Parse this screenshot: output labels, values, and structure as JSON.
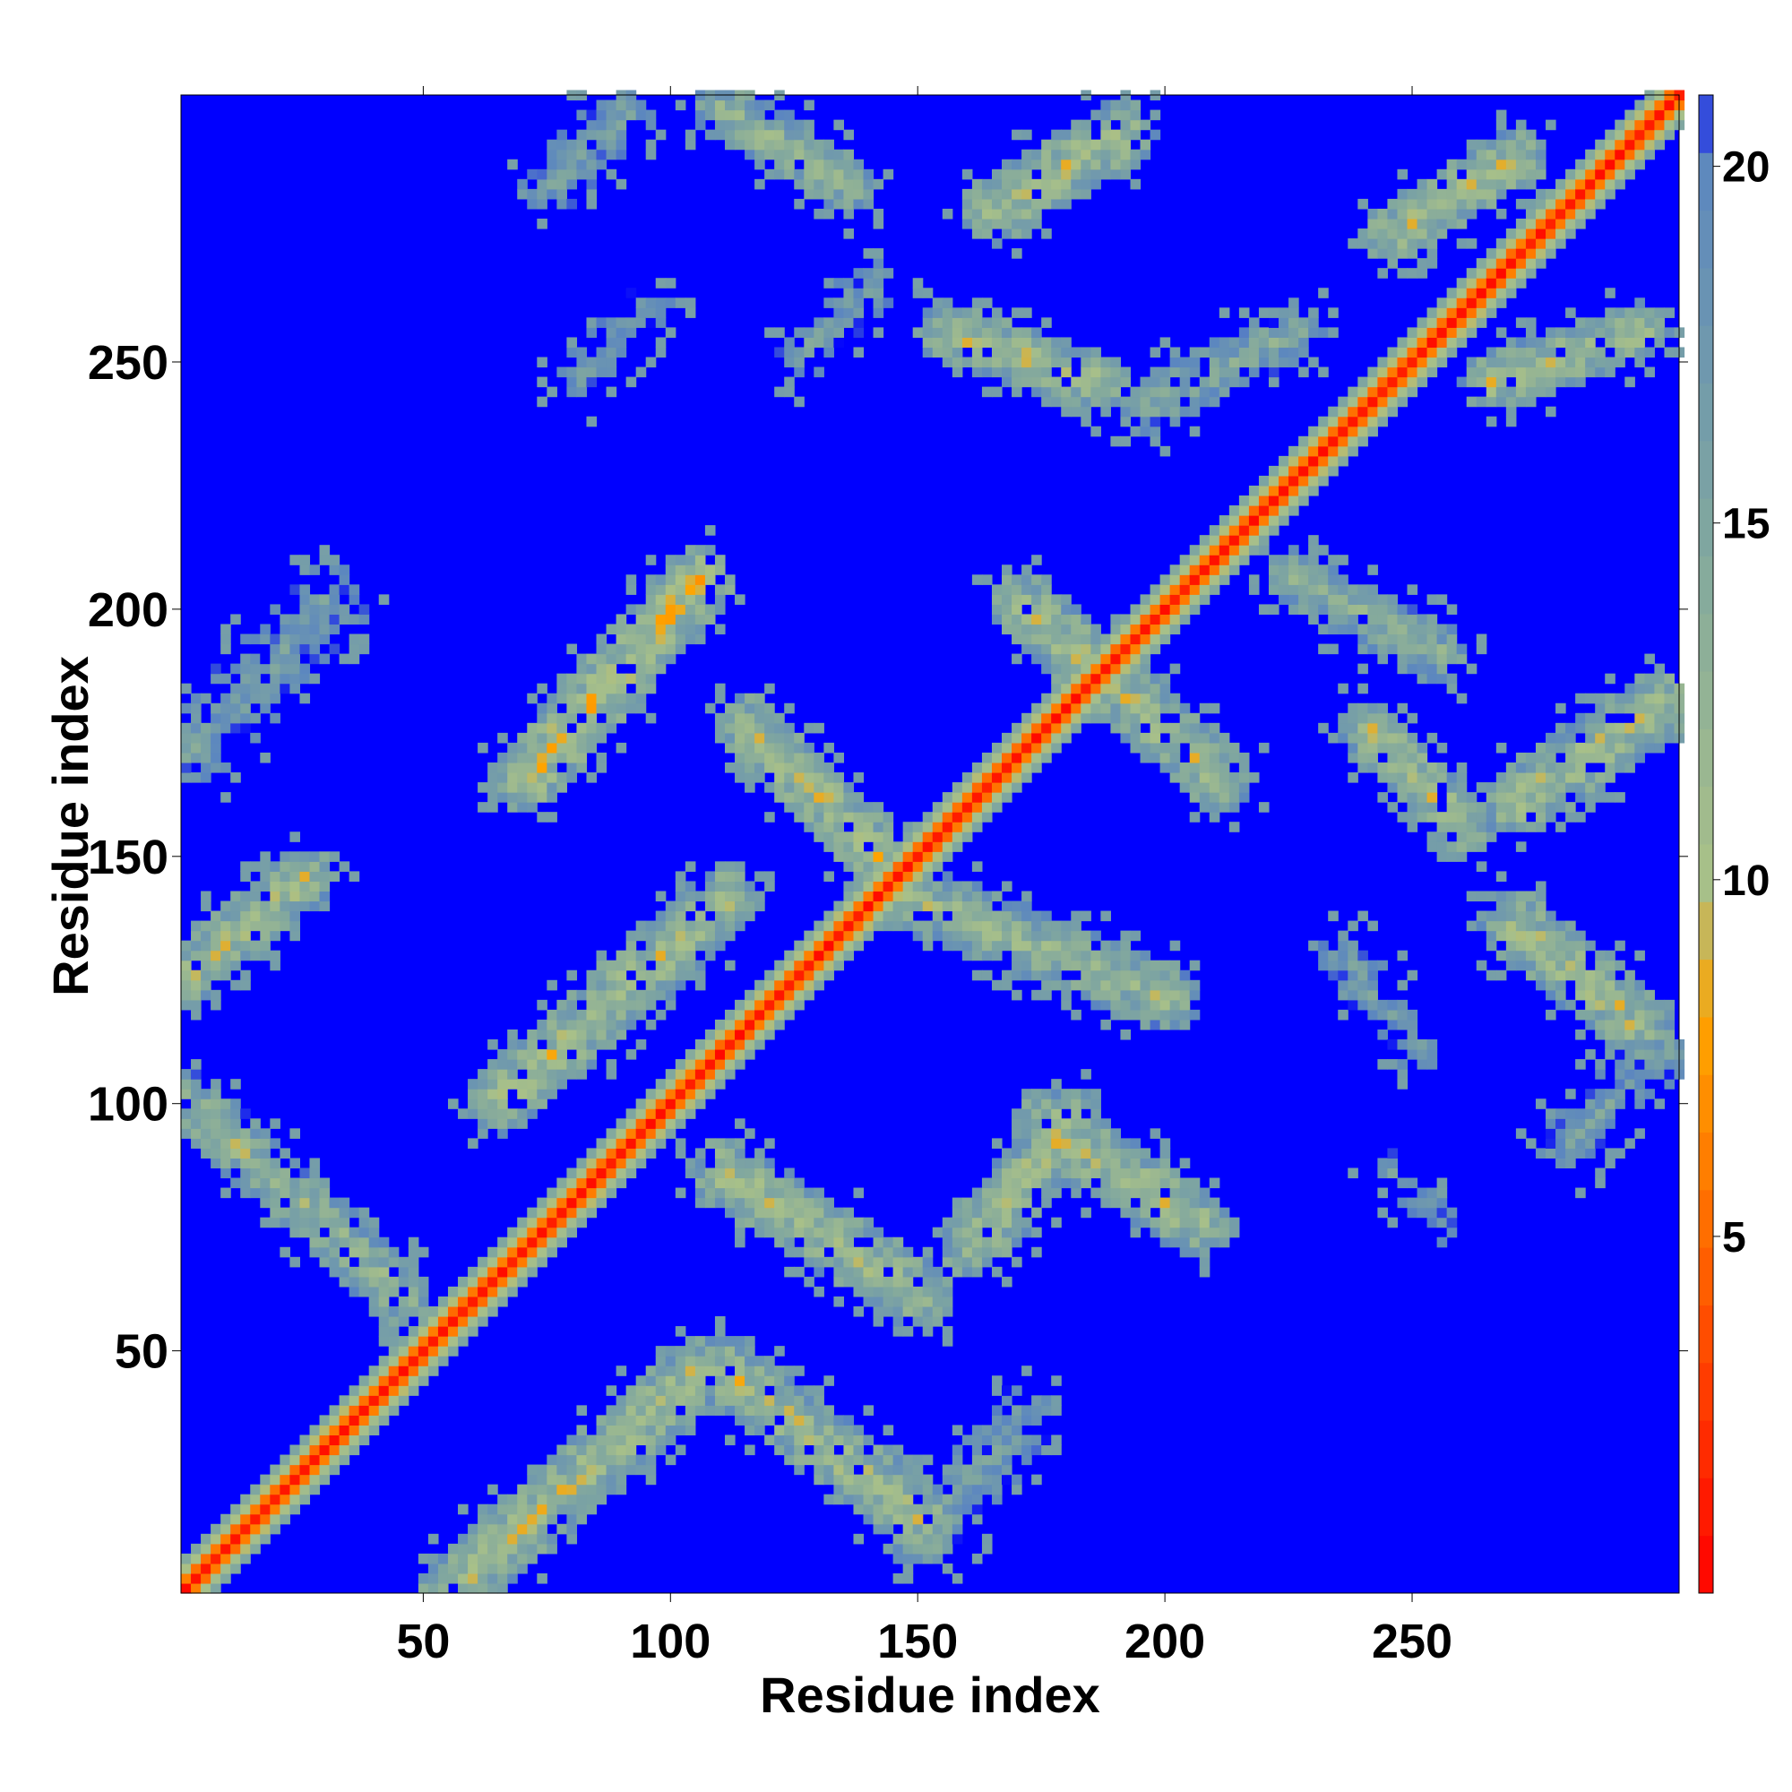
{
  "chart_data": {
    "type": "heatmap",
    "title": "",
    "xlabel": "Residue index",
    "ylabel": "Residue index",
    "xlim": [
      1,
      304
    ],
    "ylim": [
      1,
      304
    ],
    "x_ticks": [
      50,
      100,
      150,
      200,
      250
    ],
    "y_ticks": [
      50,
      100,
      150,
      200,
      250
    ],
    "grid": false,
    "colorbar": {
      "range": [
        0,
        21
      ],
      "ticks": [
        5,
        10,
        15,
        20
      ],
      "stops": [
        {
          "value": 0,
          "color": "#ff0000"
        },
        {
          "value": 4,
          "color": "#ff5500"
        },
        {
          "value": 8,
          "color": "#ffa500"
        },
        {
          "value": 10,
          "color": "#a8c089"
        },
        {
          "value": 15,
          "color": "#7fa6a0"
        },
        {
          "value": 20.3,
          "color": "#5b86c0"
        },
        {
          "value": 21,
          "color": "#0000ff"
        }
      ],
      "background_color": "#0000ff"
    },
    "diagonal": {
      "from": 1,
      "to": 304,
      "core_value": 1,
      "band_halfwidth": 7
    },
    "contact_segments": [
      {
        "i": [
          1,
          45
        ],
        "j": [
          100,
          60
        ],
        "width": 6,
        "value": 12
      },
      {
        "i": [
          1,
          25
        ],
        "j": [
          125,
          145
        ],
        "width": 6,
        "value": 11
      },
      {
        "i": [
          2,
          30
        ],
        "j": [
          170,
          200
        ],
        "width": 8,
        "value": 16
      },
      {
        "i": [
          55,
          105
        ],
        "j": [
          1,
          45
        ],
        "width": 7,
        "value": 11
      },
      {
        "i": [
          65,
          110
        ],
        "j": [
          100,
          140
        ],
        "width": 7,
        "value": 11
      },
      {
        "i": [
          70,
          105
        ],
        "j": [
          165,
          205
        ],
        "width": 7,
        "value": 10
      },
      {
        "i": [
          75,
          90
        ],
        "j": [
          285,
          300
        ],
        "width": 6,
        "value": 16
      },
      {
        "i": [
          80,
          95
        ],
        "j": [
          245,
          260
        ],
        "width": 5,
        "value": 17
      },
      {
        "i": [
          110,
          150
        ],
        "j": [
          45,
          15
        ],
        "width": 7,
        "value": 11
      },
      {
        "i": [
          110,
          150
        ],
        "j": [
          85,
          60
        ],
        "width": 7,
        "value": 11
      },
      {
        "i": [
          115,
          150
        ],
        "j": [
          175,
          140
        ],
        "width": 7,
        "value": 11
      },
      {
        "i": [
          110,
          135
        ],
        "j": [
          300,
          285
        ],
        "width": 6,
        "value": 12
      },
      {
        "i": [
          125,
          140
        ],
        "j": [
          250,
          265
        ],
        "width": 5,
        "value": 16
      },
      {
        "i": [
          150,
          170
        ],
        "j": [
          10,
          35
        ],
        "width": 7,
        "value": 16
      },
      {
        "i": [
          150,
          200
        ],
        "j": [
          140,
          120
        ],
        "width": 7,
        "value": 12
      },
      {
        "i": [
          160,
          180
        ],
        "j": [
          70,
          95
        ],
        "width": 7,
        "value": 11
      },
      {
        "i": [
          155,
          185
        ],
        "j": [
          255,
          245
        ],
        "width": 6,
        "value": 11
      },
      {
        "i": [
          165,
          190
        ],
        "j": [
          280,
          295
        ],
        "width": 7,
        "value": 11
      },
      {
        "i": [
          175,
          205
        ],
        "j": [
          95,
          75
        ],
        "width": 7,
        "value": 11
      },
      {
        "i": [
          170,
          210
        ],
        "j": [
          200,
          165
        ],
        "width": 7,
        "value": 11
      },
      {
        "i": [
          195,
          225
        ],
        "j": [
          240,
          255
        ],
        "width": 6,
        "value": 14
      },
      {
        "i": [
          225,
          255
        ],
        "j": [
          205,
          190
        ],
        "width": 6,
        "value": 13
      },
      {
        "i": [
          235,
          250
        ],
        "j": [
          130,
          110
        ],
        "width": 5,
        "value": 16
      },
      {
        "i": [
          240,
          260
        ],
        "j": [
          175,
          155
        ],
        "width": 6,
        "value": 11
      },
      {
        "i": [
          245,
          270
        ],
        "j": [
          275,
          290
        ],
        "width": 6,
        "value": 11
      },
      {
        "i": [
          245,
          255
        ],
        "j": [
          85,
          75
        ],
        "width": 4,
        "value": 17
      },
      {
        "i": [
          265,
          295
        ],
        "j": [
          245,
          255
        ],
        "width": 6,
        "value": 11
      },
      {
        "i": [
          270,
          300
        ],
        "j": [
          160,
          180
        ],
        "width": 7,
        "value": 11
      },
      {
        "i": [
          270,
          295
        ],
        "j": [
          135,
          115
        ],
        "width": 7,
        "value": 11
      },
      {
        "i": [
          280,
          300
        ],
        "j": [
          90,
          110
        ],
        "width": 6,
        "value": 16
      }
    ]
  }
}
